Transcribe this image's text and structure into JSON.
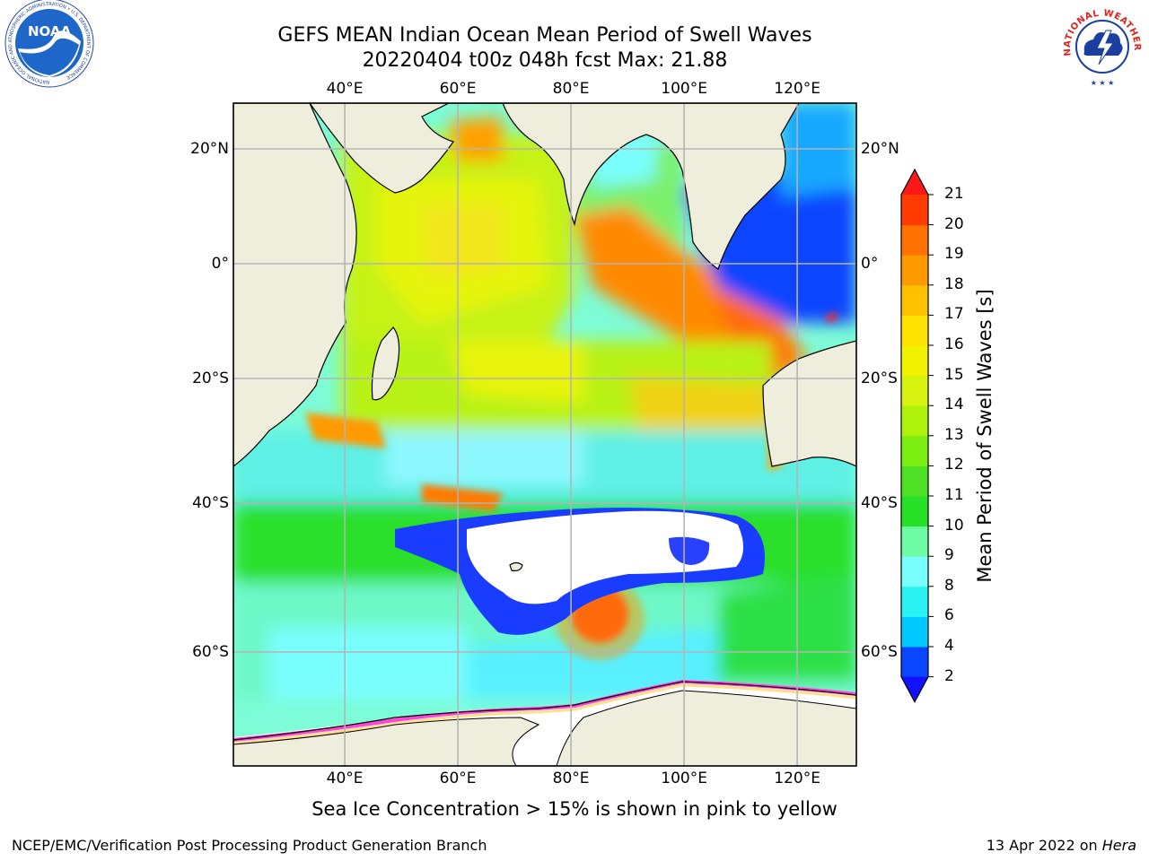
{
  "title": {
    "line1": "GEFS MEAN Indian Ocean Mean Period of Swell Waves",
    "line2": "20220404 t00z 048h fcst   Max: 21.88"
  },
  "axes": {
    "lon_top": [
      "40°E",
      "60°E",
      "80°E",
      "100°E",
      "120°E"
    ],
    "lon_bottom": [
      "40°E",
      "60°E",
      "80°E",
      "100°E",
      "120°E"
    ],
    "lat_left": [
      "20°N",
      "0°",
      "20°S",
      "40°S",
      "60°S"
    ],
    "lat_right": [
      "20°N",
      "0°",
      "20°S",
      "40°S",
      "60°S"
    ],
    "lon_values": [
      40,
      60,
      80,
      100,
      120
    ],
    "lat_values": [
      20,
      0,
      -20,
      -40,
      -60
    ]
  },
  "colorbar": {
    "title": "Mean Period of Swell Waves [s]",
    "ticks": [
      "2",
      "4",
      "6",
      "8",
      "9",
      "10",
      "11",
      "12",
      "13",
      "14",
      "15",
      "16",
      "17",
      "18",
      "19",
      "20",
      "21"
    ],
    "colors": [
      "#0a45ff",
      "#00c8ff",
      "#2af3f3",
      "#7affff",
      "#6efca4",
      "#25e026",
      "#4ee024",
      "#7bed10",
      "#aef20c",
      "#d6f20e",
      "#f0f200",
      "#ffe100",
      "#ffc000",
      "#ff9900",
      "#ff7200",
      "#ff3b00"
    ],
    "under_color": "#1212ff",
    "over_color": "#ff1818"
  },
  "colors": {
    "land": "#efeedd",
    "grid": "#b4b4b4",
    "sea_ice_pink": "#ff44d8",
    "sea_ice_yellow": "#ffe08a"
  },
  "subcaption": "Sea Ice Concentration > 15% is shown in pink to yellow",
  "footer": {
    "left": "NCEP/EMC/Verification Post Processing Product Generation Branch",
    "right_date": "13 Apr 2022 on ",
    "right_host": "Hera"
  },
  "logos": {
    "noaa": "NOAA",
    "noaa_ring": "NATIONAL OCEANIC AND ATMOSPHERIC ADMINISTRATION • U.S. DEPARTMENT OF COMMERCE",
    "nws_ring": "NATIONAL WEATHER SERVICE"
  }
}
